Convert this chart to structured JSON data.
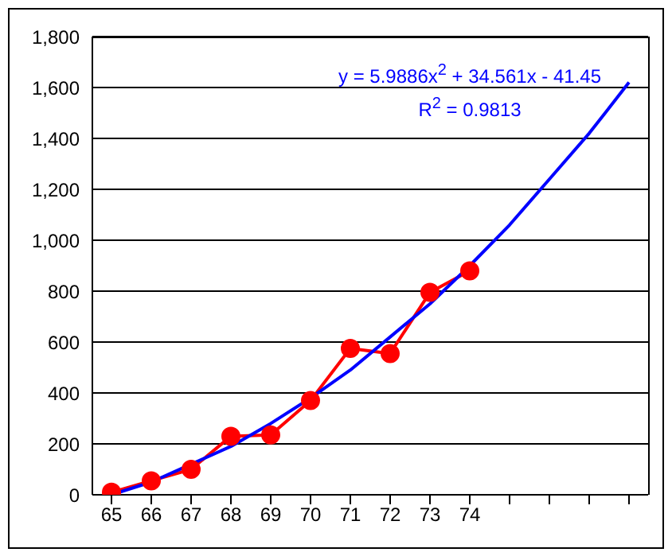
{
  "chart_data": {
    "type": "line",
    "categories": [
      "65",
      "66",
      "67",
      "68",
      "69",
      "70",
      "71",
      "72",
      "73",
      "74",
      null,
      null,
      null,
      null
    ],
    "series": [
      {
        "color": "#ff0000",
        "marker": "circle",
        "values": [
          10,
          55,
          100,
          230,
          235,
          370,
          575,
          555,
          795,
          880,
          null,
          null,
          null,
          null
        ]
      },
      {
        "color": "#0000ff",
        "marker": "none",
        "values": [
          0,
          50,
          120,
          190,
          280,
          380,
          490,
          620,
          750,
          900,
          1060,
          1240,
          1420,
          1620
        ]
      }
    ],
    "ylim": [
      0,
      1800
    ],
    "yticks": [
      {
        "value": 0,
        "label": "0"
      },
      {
        "value": 200,
        "label": "200"
      },
      {
        "value": 400,
        "label": "400"
      },
      {
        "value": 600,
        "label": "600"
      },
      {
        "value": 800,
        "label": "800"
      },
      {
        "value": 1000,
        "label": "1,000"
      },
      {
        "value": 1200,
        "label": "1,200"
      },
      {
        "value": 1400,
        "label": "1,400"
      },
      {
        "value": 1600,
        "label": "1,600"
      },
      {
        "value": 1800,
        "label": "1,800"
      }
    ],
    "grid": "y",
    "line_style": "solid",
    "annotations": [
      "y = 5.9886x$^{2}$ + 34.561x - 41.45",
      "R$^{2}$ = 0.9813"
    ]
  }
}
